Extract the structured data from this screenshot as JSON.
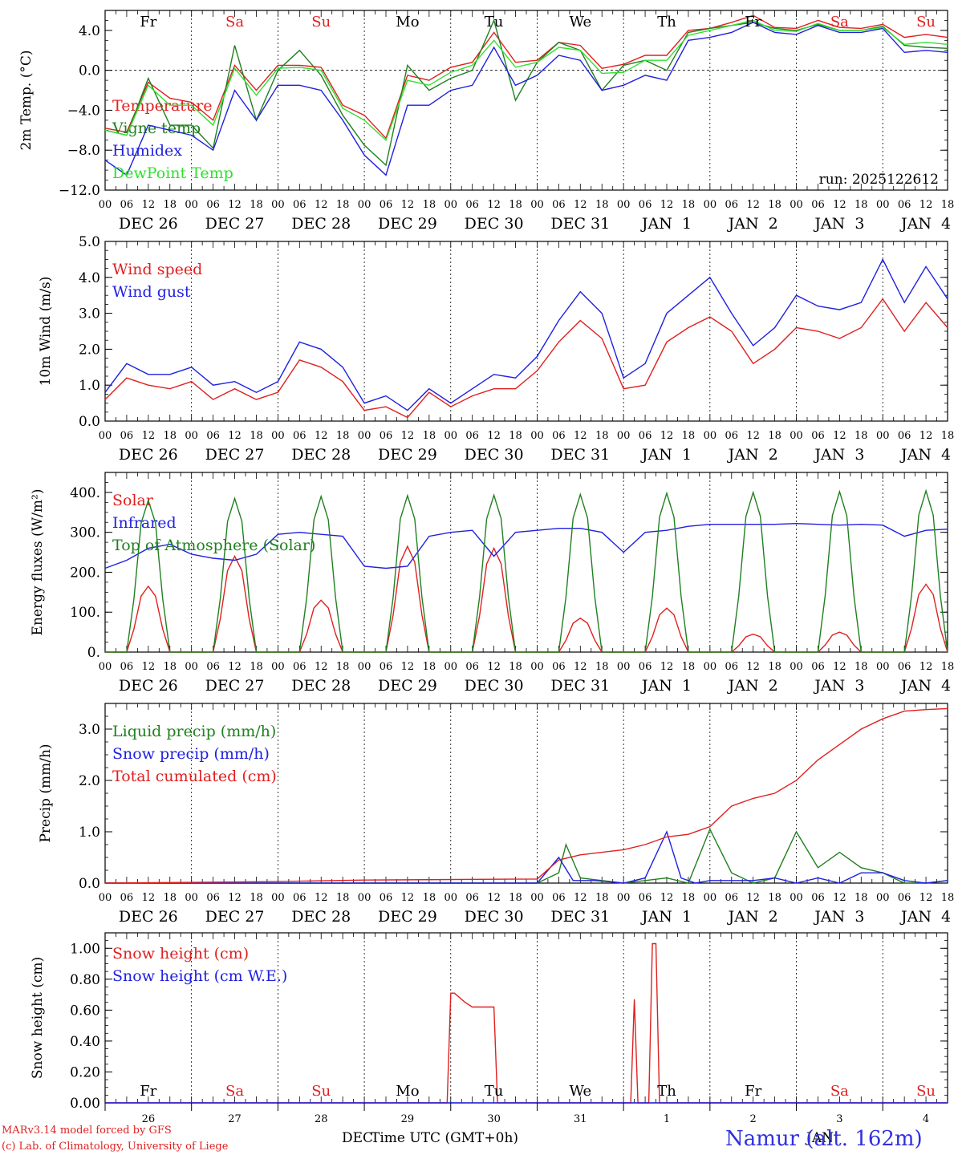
{
  "days": [
    "Fr",
    "Sa",
    "Su",
    "Mo",
    "Tu",
    "We",
    "Th",
    "Fr",
    "Sa",
    "Su"
  ],
  "weekend_color": "#e02020",
  "weekday_color": "#000000",
  "hour_ticks": [
    "00",
    "06",
    "12",
    "18"
  ],
  "date_labels": [
    "DEC 26",
    "DEC 27",
    "DEC 28",
    "DEC 29",
    "DEC 30",
    "DEC 31",
    "JAN  1",
    "JAN  2",
    "JAN  3",
    "JAN  4"
  ],
  "bottom_day_numbers": [
    "26",
    "27",
    "28",
    "29",
    "30",
    "31",
    "1",
    "2",
    "3",
    "4"
  ],
  "bottom_month_left": "DEC",
  "bottom_month_right": "JAN",
  "xlabel": "Time UTC (GMT+0h)",
  "footer_left_1": "MARv3.14 model forced by GFS",
  "footer_left_2": "(c) Lab. of Climatology, University of Liege",
  "station_label": "Namur (alt. 162m)",
  "run_label": "run: 2025122612",
  "chart_data": [
    {
      "type": "line",
      "id": "temp",
      "ylabel": "2m Temp. (°C)",
      "ylim": [
        -12,
        6
      ],
      "yticks": [
        -12,
        -8,
        -4,
        0,
        4
      ],
      "ytick_labels": [
        "−12.0",
        "−8.0",
        "−4.0",
        "0.0",
        "4.0"
      ],
      "zero_line": true,
      "x_units": "hours since DEC 26 00 UTC",
      "series": [
        {
          "name": "Temperature",
          "color": "#e02020",
          "x": [
            0,
            6,
            12,
            18,
            24,
            30,
            36,
            42,
            48,
            54,
            60,
            66,
            72,
            78,
            84,
            90,
            96,
            102,
            108,
            114,
            120,
            126,
            132,
            138,
            144,
            150,
            156,
            162,
            168,
            174,
            180,
            186,
            192,
            198,
            204,
            210,
            216,
            222,
            228,
            234
          ],
          "values": [
            -5.8,
            -6.2,
            -1.2,
            -2.8,
            -3.2,
            -5,
            0.5,
            -2,
            0.5,
            0.5,
            0.3,
            -3.5,
            -4.5,
            -6.8,
            -0.5,
            -1,
            0.3,
            0.8,
            3.8,
            0.8,
            1,
            2.8,
            2.5,
            0.2,
            0.6,
            1.5,
            1.5,
            4,
            4.2,
            4.8,
            5.5,
            4.3,
            4.2,
            5,
            4.3,
            4.2,
            4.6,
            3.3,
            3.6,
            3.3
          ]
        },
        {
          "name": "Vigne temp",
          "color": "#208020",
          "x": [
            0,
            6,
            12,
            18,
            24,
            30,
            36,
            42,
            48,
            54,
            60,
            66,
            72,
            78,
            84,
            90,
            96,
            102,
            108,
            114,
            120,
            126,
            132,
            138,
            144,
            150,
            156,
            162,
            168,
            174,
            180,
            186,
            192,
            198,
            204,
            210,
            216,
            222,
            228,
            234
          ],
          "values": [
            -6,
            -6.5,
            -0.8,
            -5.5,
            -5.5,
            -7.8,
            2.5,
            -5,
            0,
            2,
            -0.5,
            -4.5,
            -7.5,
            -9.5,
            0.5,
            -2,
            -0.8,
            0,
            5,
            -3,
            0.8,
            2.8,
            2,
            -2,
            0.5,
            1,
            0,
            3.8,
            4.2,
            4.5,
            4.8,
            4.2,
            4,
            4.6,
            4,
            4,
            4.4,
            2.5,
            2.3,
            2.2
          ]
        },
        {
          "name": "Humidex",
          "color": "#2020e0",
          "x": [
            0,
            6,
            12,
            18,
            24,
            30,
            36,
            42,
            48,
            54,
            60,
            66,
            72,
            78,
            84,
            90,
            96,
            102,
            108,
            114,
            120,
            126,
            132,
            138,
            144,
            150,
            156,
            162,
            168,
            174,
            180,
            186,
            192,
            198,
            204,
            210,
            216,
            222,
            228,
            234
          ],
          "values": [
            -9,
            -10.5,
            -5.5,
            -6,
            -6.5,
            -8,
            -2,
            -5,
            -1.5,
            -1.5,
            -2,
            -5,
            -8.5,
            -10.5,
            -3.5,
            -3.5,
            -2,
            -1.5,
            2.3,
            -1.5,
            -0.5,
            1.5,
            1,
            -2,
            -1.5,
            -0.5,
            -1,
            3,
            3.3,
            3.8,
            4.8,
            3.8,
            3.6,
            4.5,
            3.8,
            3.8,
            4.2,
            1.8,
            2,
            1.8
          ]
        },
        {
          "name": "DewPoint Temp",
          "color": "#30e030",
          "x": [
            0,
            6,
            12,
            18,
            24,
            30,
            36,
            42,
            48,
            54,
            60,
            66,
            72,
            78,
            84,
            90,
            96,
            102,
            108,
            114,
            120,
            126,
            132,
            138,
            144,
            150,
            156,
            162,
            168,
            174,
            180,
            186,
            192,
            198,
            204,
            210,
            216,
            222,
            228,
            234
          ],
          "values": [
            -6,
            -6.5,
            -1.5,
            -3.5,
            -3.5,
            -5.5,
            0.2,
            -2.5,
            0.2,
            0.3,
            0,
            -3.8,
            -5,
            -7,
            -1,
            -1.5,
            -0.2,
            0.5,
            3,
            0.3,
            0.8,
            2.3,
            2,
            -0.3,
            -0.2,
            1,
            1,
            3.5,
            4,
            4.5,
            5,
            4,
            3.9,
            4.7,
            4,
            4,
            4.3,
            2.6,
            2.8,
            2.6
          ]
        }
      ]
    },
    {
      "type": "line",
      "id": "wind",
      "ylabel": "10m Wind (m/s)",
      "ylim": [
        0,
        5
      ],
      "yticks": [
        0,
        1,
        2,
        3,
        4,
        5
      ],
      "ytick_labels": [
        "0.0",
        "1.0",
        "2.0",
        "3.0",
        "4.0",
        "5.0"
      ],
      "series": [
        {
          "name": "Wind speed",
          "color": "#e02020",
          "x": [
            0,
            6,
            12,
            18,
            24,
            30,
            36,
            42,
            48,
            54,
            60,
            66,
            72,
            78,
            84,
            90,
            96,
            102,
            108,
            114,
            120,
            126,
            132,
            138,
            144,
            150,
            156,
            162,
            168,
            174,
            180,
            186,
            192,
            198,
            204,
            210,
            216,
            222,
            228,
            234
          ],
          "values": [
            0.6,
            1.2,
            1,
            0.9,
            1.1,
            0.6,
            0.9,
            0.6,
            0.8,
            1.7,
            1.5,
            1.1,
            0.3,
            0.4,
            0.1,
            0.8,
            0.4,
            0.7,
            0.9,
            0.9,
            1.4,
            2.2,
            2.8,
            2.3,
            0.9,
            1,
            2.2,
            2.6,
            2.9,
            2.5,
            1.6,
            2,
            2.6,
            2.5,
            2.3,
            2.6,
            3.4,
            2.5,
            3.3,
            2.6
          ]
        },
        {
          "name": "Wind gust",
          "color": "#2020e0",
          "x": [
            0,
            6,
            12,
            18,
            24,
            30,
            36,
            42,
            48,
            54,
            60,
            66,
            72,
            78,
            84,
            90,
            96,
            102,
            108,
            114,
            120,
            126,
            132,
            138,
            144,
            150,
            156,
            162,
            168,
            174,
            180,
            186,
            192,
            198,
            204,
            210,
            216,
            222,
            228,
            234
          ],
          "values": [
            0.8,
            1.6,
            1.3,
            1.3,
            1.5,
            1,
            1.1,
            0.8,
            1.1,
            2.2,
            2,
            1.5,
            0.5,
            0.7,
            0.3,
            0.9,
            0.5,
            0.9,
            1.3,
            1.2,
            1.8,
            2.8,
            3.6,
            3,
            1.2,
            1.6,
            3,
            3.5,
            4,
            3,
            2.1,
            2.6,
            3.5,
            3.2,
            3.1,
            3.3,
            4.5,
            3.3,
            4.3,
            3.4
          ]
        }
      ]
    },
    {
      "type": "line",
      "id": "energy",
      "ylabel": "Energy fluxes (W/m²)",
      "ylim": [
        0,
        450
      ],
      "yticks": [
        0,
        100,
        200,
        300,
        400
      ],
      "ytick_labels": [
        "0.",
        "100.",
        "200.",
        "300.",
        "400."
      ],
      "series": [
        {
          "name": "Solar",
          "color": "#e02020",
          "daily_peaks": [
            165,
            240,
            130,
            265,
            260,
            85,
            110,
            45,
            50,
            170
          ],
          "peak_hour": 12
        },
        {
          "name": "Infrared",
          "color": "#2020e0",
          "x": [
            0,
            6,
            12,
            18,
            24,
            30,
            36,
            42,
            48,
            54,
            60,
            66,
            72,
            78,
            84,
            90,
            96,
            102,
            108,
            114,
            120,
            126,
            132,
            138,
            144,
            150,
            156,
            162,
            168,
            174,
            180,
            186,
            192,
            198,
            204,
            210,
            216,
            222,
            228,
            234
          ],
          "values": [
            210,
            230,
            260,
            270,
            245,
            235,
            230,
            245,
            295,
            300,
            295,
            290,
            215,
            210,
            215,
            290,
            300,
            305,
            240,
            300,
            305,
            310,
            310,
            300,
            250,
            300,
            305,
            315,
            320,
            320,
            320,
            320,
            322,
            320,
            318,
            320,
            318,
            290,
            305,
            308
          ]
        },
        {
          "name": "Top of Atmosphere (Solar)",
          "color": "#208020",
          "daily_peaks": [
            380,
            385,
            390,
            392,
            393,
            395,
            398,
            400,
            402,
            404
          ],
          "peak_hour": 12
        }
      ]
    },
    {
      "type": "line",
      "id": "precip",
      "ylabel": "Precip (mm/h)",
      "ylim": [
        0,
        3.5
      ],
      "yticks": [
        0,
        1,
        2,
        3
      ],
      "ytick_labels": [
        "0.0",
        "1.0",
        "2.0",
        "3.0"
      ],
      "series": [
        {
          "name": "Liquid precip (mm/h)",
          "color": "#208020",
          "x": [
            0,
            120,
            126,
            128,
            132,
            138,
            144,
            150,
            156,
            162,
            168,
            174,
            180,
            186,
            192,
            198,
            204,
            210,
            216,
            222,
            228,
            234
          ],
          "values": [
            0,
            0,
            0.2,
            0.75,
            0.1,
            0.05,
            0,
            0.05,
            0.1,
            0,
            1.05,
            0.2,
            0,
            0.1,
            1,
            0.3,
            0.6,
            0.3,
            0.2,
            0,
            0,
            0.05
          ]
        },
        {
          "name": "Snow precip (mm/h)",
          "color": "#2020e0",
          "x": [
            0,
            120,
            126,
            130,
            136,
            144,
            150,
            156,
            160,
            164,
            168,
            174,
            180,
            186,
            192,
            198,
            204,
            210,
            216,
            222,
            228,
            234
          ],
          "values": [
            0,
            0,
            0.5,
            0.05,
            0.05,
            0,
            0.1,
            1,
            0.1,
            0,
            0.05,
            0.05,
            0.05,
            0.1,
            0,
            0.1,
            0,
            0.2,
            0.2,
            0.05,
            0,
            0.05
          ]
        },
        {
          "name": "Total cumulated (cm)",
          "color": "#e02020",
          "x": [
            0,
            48,
            72,
            120,
            126,
            132,
            144,
            150,
            156,
            162,
            168,
            174,
            180,
            186,
            192,
            198,
            204,
            210,
            216,
            222,
            228,
            234
          ],
          "values": [
            0,
            0.03,
            0.06,
            0.08,
            0.45,
            0.55,
            0.65,
            0.75,
            0.9,
            0.95,
            1.1,
            1.5,
            1.65,
            1.75,
            2,
            2.4,
            2.7,
            3,
            3.2,
            3.35,
            3.38,
            3.4
          ]
        }
      ]
    },
    {
      "type": "line",
      "id": "snow",
      "ylabel": "Snow height (cm)",
      "ylim": [
        0,
        1.1
      ],
      "yticks": [
        0,
        0.2,
        0.4,
        0.6,
        0.8,
        1.0
      ],
      "ytick_labels": [
        "0.00",
        "0.20",
        "0.40",
        "0.60",
        "0.80",
        "1.00"
      ],
      "series": [
        {
          "name": "Snow height (cm)",
          "color": "#e02020",
          "x": [
            0,
            95,
            96,
            97,
            100,
            102,
            106,
            108,
            109,
            146,
            147,
            148,
            149,
            151,
            152,
            153,
            154,
            234
          ],
          "values": [
            0,
            0,
            0.71,
            0.71,
            0.65,
            0.62,
            0.62,
            0.62,
            0,
            0,
            0.67,
            0,
            0,
            0,
            1.03,
            1.03,
            0,
            0
          ]
        },
        {
          "name": "Snow height (cm W.E.)",
          "color": "#2020e0",
          "x": [
            0,
            234
          ],
          "values": [
            0,
            0
          ]
        }
      ]
    }
  ]
}
